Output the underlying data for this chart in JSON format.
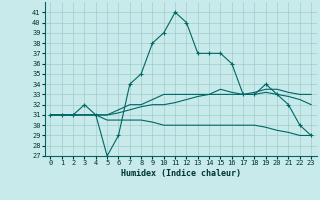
{
  "title": "",
  "xlabel": "Humidex (Indice chaleur)",
  "xlim": [
    -0.5,
    23.5
  ],
  "ylim": [
    27,
    42
  ],
  "yticks": [
    27,
    28,
    29,
    30,
    31,
    32,
    33,
    34,
    35,
    36,
    37,
    38,
    39,
    40,
    41
  ],
  "xticks": [
    0,
    1,
    2,
    3,
    4,
    5,
    6,
    7,
    8,
    9,
    10,
    11,
    12,
    13,
    14,
    15,
    16,
    17,
    18,
    19,
    20,
    21,
    22,
    23
  ],
  "bg_color": "#c8eaea",
  "grid_color": "#a0cccc",
  "line_color": "#006666",
  "line1": [
    31,
    31,
    31,
    32,
    31,
    27,
    29,
    34,
    35,
    38,
    39,
    41,
    40,
    37,
    37,
    37,
    36,
    33,
    33,
    34,
    33,
    32,
    30,
    29
  ],
  "line2": [
    31,
    31,
    31,
    31,
    31,
    31,
    31.5,
    32,
    32,
    32.5,
    33,
    33,
    33,
    33,
    33,
    33.5,
    33.2,
    33,
    33.2,
    33.5,
    33.5,
    33.2,
    33,
    33
  ],
  "line3": [
    31,
    31,
    31,
    31,
    31,
    31,
    31.2,
    31.5,
    31.8,
    32,
    32,
    32.2,
    32.5,
    32.8,
    33,
    33,
    33,
    33,
    33,
    33.2,
    33,
    32.8,
    32.5,
    32
  ],
  "line4": [
    31,
    31,
    31,
    31,
    31,
    30.5,
    30.5,
    30.5,
    30.5,
    30.3,
    30,
    30,
    30,
    30,
    30,
    30,
    30,
    30,
    30,
    29.8,
    29.5,
    29.3,
    29,
    29
  ]
}
